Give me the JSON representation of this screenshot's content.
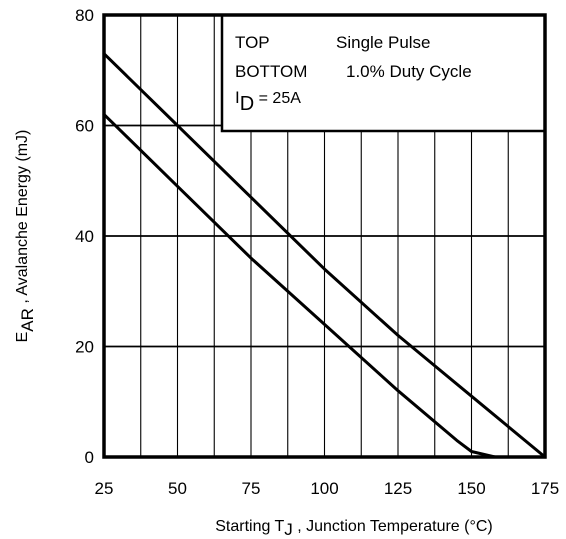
{
  "chart_data": {
    "type": "line",
    "title": "",
    "xlabel": {
      "main": "Starting T",
      "sub": "J",
      "rest": " , Junction Temperature (°C)"
    },
    "ylabel": {
      "main": "E",
      "sub": "AR",
      "rest": " , Avalanche Energy (mJ)"
    },
    "xlim": [
      25,
      175
    ],
    "ylim": [
      0,
      80
    ],
    "x_ticks": [
      "25",
      "50",
      "75",
      "100",
      "125",
      "150",
      "175"
    ],
    "y_ticks": [
      "0",
      "20",
      "40",
      "60",
      "80"
    ],
    "grid": true,
    "legend": {
      "placement": "top-right",
      "top_key": "TOP",
      "top_value": "Single Pulse",
      "bottom_key": "BOTTOM",
      "bottom_value": "1.0% Duty Cycle",
      "id_main": "I",
      "id_sub": "D",
      "id_rest": " = 25A"
    },
    "series": [
      {
        "x": [
          25,
          50,
          75,
          100,
          125,
          150,
          175
        ],
        "y": [
          73,
          60,
          47,
          34,
          22,
          11,
          0
        ]
      },
      {
        "x": [
          25,
          50,
          75,
          100,
          125,
          145,
          150,
          158
        ],
        "y": [
          62,
          49,
          36,
          24,
          12,
          3,
          1,
          0
        ]
      }
    ]
  }
}
